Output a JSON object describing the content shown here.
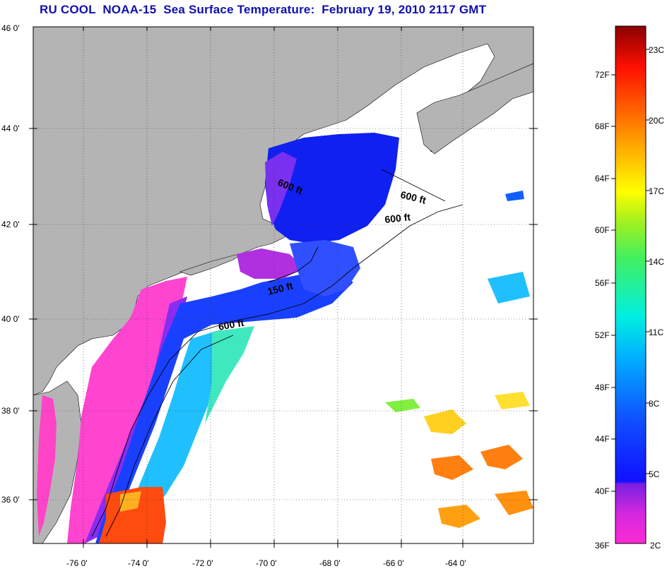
{
  "title": "RU COOL  NOAA-15  Sea Surface Temperature:  February 19, 2010 2117 GMT",
  "map": {
    "lon_ticks": [
      "-76 0'",
      "-74 0'",
      "-72 0'",
      "-70 0'",
      "-68 0'",
      "-66 0'",
      "-64 0'"
    ],
    "lat_ticks": [
      "46 0'",
      "44 0'",
      "42 0'",
      "40 0'",
      "38 0'",
      "36 0'"
    ],
    "contour_labels": [
      "600 ft",
      "600 ft",
      "600 ft",
      "150 ft",
      "600 ft"
    ],
    "colors": {
      "land": "#b4b4b4",
      "water_nodata": "#ffffff",
      "frame": "#000000"
    }
  },
  "colorbar": {
    "fahrenheit_labels": [
      "72F",
      "68F",
      "64F",
      "60F",
      "56F",
      "52F",
      "48F",
      "44F",
      "40F",
      "36F"
    ],
    "celsius_labels": [
      "23C",
      "20C",
      "17C",
      "14C",
      "11C",
      "8C",
      "5C",
      "2C"
    ]
  }
}
